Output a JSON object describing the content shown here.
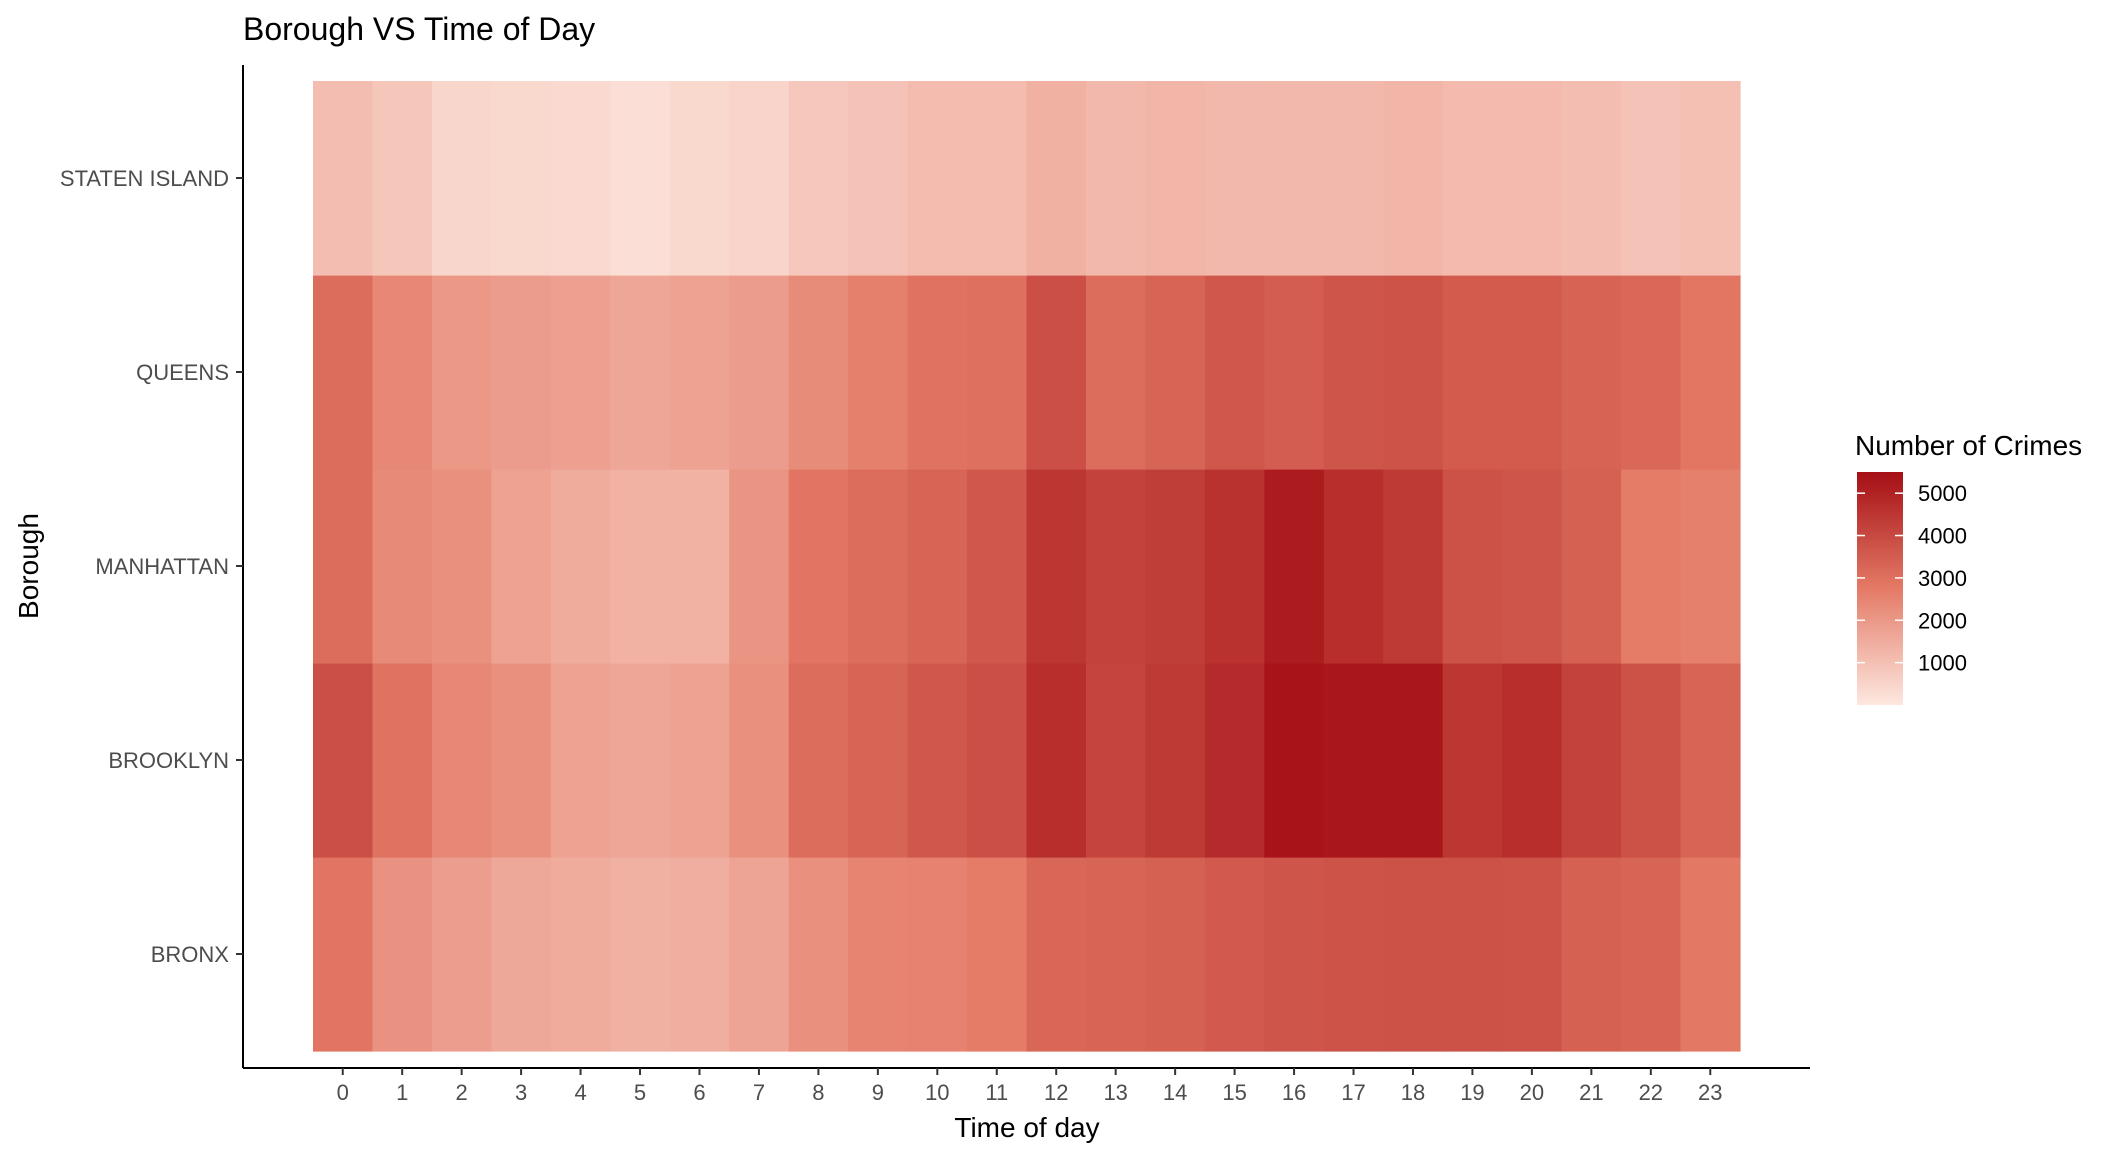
{
  "chart_data": {
    "type": "heatmap",
    "title": "Borough VS Time of Day",
    "xlabel": "Time of day",
    "ylabel": "Borough",
    "x": [
      "0",
      "1",
      "2",
      "3",
      "4",
      "5",
      "6",
      "7",
      "8",
      "9",
      "10",
      "11",
      "12",
      "13",
      "14",
      "15",
      "16",
      "17",
      "18",
      "19",
      "20",
      "21",
      "22",
      "23"
    ],
    "y": [
      "BRONX",
      "BROOKLYN",
      "MANHATTAN",
      "QUEENS",
      "STATEN ISLAND"
    ],
    "values": [
      [
        2900,
        2150,
        1850,
        1600,
        1500,
        1400,
        1450,
        1700,
        2200,
        2500,
        2550,
        2700,
        3250,
        3300,
        3400,
        3600,
        3700,
        3750,
        3800,
        3800,
        3750,
        3400,
        3300,
        2800
      ],
      [
        3850,
        2950,
        2400,
        2200,
        1750,
        1650,
        1750,
        2200,
        3100,
        3300,
        3650,
        3850,
        4700,
        4100,
        4400,
        4800,
        5400,
        5300,
        5300,
        4500,
        4700,
        4200,
        3800,
        3300
      ],
      [
        3100,
        2350,
        2200,
        1750,
        1500,
        1350,
        1350,
        2100,
        2900,
        3100,
        3300,
        3650,
        4500,
        4200,
        4300,
        4600,
        5200,
        4700,
        4400,
        3800,
        3700,
        3400,
        2700,
        2600
      ],
      [
        3100,
        2400,
        2000,
        1900,
        1800,
        1650,
        1750,
        1900,
        2300,
        2600,
        2950,
        3000,
        3850,
        3100,
        3300,
        3650,
        3500,
        3700,
        3750,
        3550,
        3550,
        3350,
        3200,
        2850
      ],
      [
        1050,
        850,
        450,
        400,
        350,
        250,
        400,
        500,
        800,
        950,
        1100,
        1100,
        1400,
        1200,
        1250,
        1200,
        1200,
        1200,
        1250,
        1150,
        1150,
        1050,
        950,
        1000
      ]
    ],
    "color_range": [
      0,
      5500
    ],
    "color_low": "#fde8e0",
    "color_high": "#a50f15",
    "legend": {
      "title": "Number of Crimes",
      "ticks": [
        1000,
        2000,
        3000,
        4000,
        5000
      ],
      "tick_labels": [
        "1000",
        "2000",
        "3000",
        "4000",
        "5000"
      ],
      "placement": "right"
    },
    "grid": false
  }
}
